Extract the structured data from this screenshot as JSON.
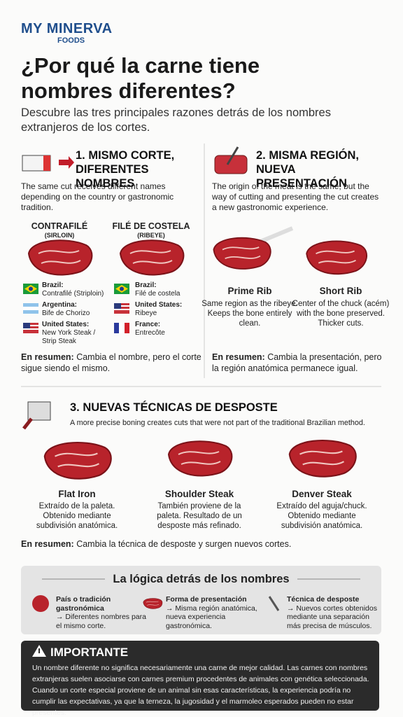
{
  "header": {
    "brand": "MY MINERVA",
    "brand_sub": "FOODS",
    "title": "¿Por qué la carne tiene nombres diferentes?",
    "subtitle": "Descubre las tres principales razones detrás de los nombres extranjeros de los cortes."
  },
  "sections": [
    {
      "title": "1. MISMO CORTE, DIFERENTES NOMBRES",
      "text": "The same cut receives different names depending on the country or gastronomic tradition.",
      "cuts": [
        {
          "name": "CONTRAFILÉ",
          "alt": "(SIRLOIN)",
          "names": [
            {
              "country": "Brazil:",
              "name": "Contrafilé (Striploin)"
            },
            {
              "country": "Argentina:",
              "name": "Bife de Chorizo"
            },
            {
              "country": "United States:",
              "name": "New York Steak / Strip Steak"
            }
          ]
        },
        {
          "name": "FILÉ DE COSTELA",
          "alt": "(RIBEYE)",
          "names": [
            {
              "country": "Brazil:",
              "name": "Filé de costela"
            },
            {
              "country": "United States:",
              "name": "Ribeye"
            },
            {
              "country": "France:",
              "name": "Entrecôte"
            }
          ]
        }
      ],
      "summary_label": "En resumen:",
      "summary": "Cambia el nombre, pero el corte sigue siendo el mismo."
    },
    {
      "title": "2. MISMA REGIÓN, NUEVA PRESENTACIÓN",
      "text": "The origin of the meat is the same, but the way of cutting and presenting the cut creates a new gastronomic experience.",
      "cuts": [
        {
          "name": "Prime Rib",
          "desc": "Same region as the ribeye. Keeps the bone entirely clean."
        },
        {
          "name": "Short Rib",
          "desc": "Center of the chuck (acém) with the bone preserved. Thicker cuts."
        }
      ],
      "summary_label": "En resumen:",
      "summary": "Cambia la presentación, pero la región anatómica permanece igual."
    },
    {
      "title": "3. NUEVAS TÉCNICAS DE DESPOSTE",
      "text": "A more precise boning creates cuts that were not part of the traditional Brazilian method.",
      "cuts": [
        {
          "name": "Flat Iron",
          "desc": "Extraído de la paleta. Obtenido mediante subdivisión anatómica."
        },
        {
          "name": "Shoulder Steak",
          "desc": "También proviene de la paleta. Resultado de un desposte más refinado."
        },
        {
          "name": "Denver Steak",
          "desc": "Extraído del aguja/chuck. Obtenido mediante subdivisión anatómica."
        }
      ],
      "summary_label": "En resumen:",
      "summary": "Cambia la técnica de desposte y surgen nuevos cortes."
    }
  ],
  "logic": {
    "title": "La lógica detrás de los nombres",
    "items": [
      {
        "title": "País o tradición gastronómica",
        "text": "→ Diferentes nombres para el mismo corte."
      },
      {
        "title": "Forma de presentación",
        "text": "→ Misma región anatómica, nueva experiencia gastronómica."
      },
      {
        "title": "Técnica de desposte",
        "text": "→ Nuevos cortes obtenidos mediante una separación más precisa de músculos."
      }
    ]
  },
  "important": {
    "title": "IMPORTANTE",
    "text": "Un nombre diferente no significa necesariamente una carne de mejor calidad. Las carnes con nombres extranjeras suelen asociarse con carnes premium procedentes de animales con genética seleccionada. Cuando un corte especial proviene de un animal sin esas características, la experiencia podría no cumplir las expectativas, ya que la terneza, la jugosidad y el marmoleo esperados pueden no estar presentes."
  }
}
